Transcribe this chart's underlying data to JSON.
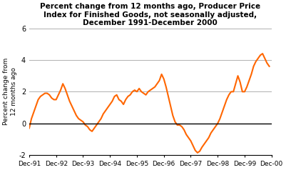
{
  "title": "Percent change from 12 months ago, Producer Price\nIndex for Finished Goods, not seasonally adjusted,\nDecember 1991-December 2000",
  "ylabel": "Percent change from\n12 months ago",
  "line_color": "#FF6600",
  "background_color": "#ffffff",
  "grid_color": "#b0b0b0",
  "ylim": [
    -2.0,
    6.0
  ],
  "yticks": [
    -2.0,
    0.0,
    2.0,
    4.0,
    6.0
  ],
  "xtick_labels": [
    "Dec-91",
    "Dec-92",
    "Dec-93",
    "Dec-94",
    "Dec-95",
    "Dec-96",
    "Dec-97",
    "Dec-98",
    "Dec-99",
    "Dec-00"
  ],
  "xtick_positions": [
    0,
    12,
    24,
    36,
    48,
    60,
    72,
    84,
    96,
    108
  ],
  "values": [
    -0.3,
    0.3,
    0.7,
    1.1,
    1.5,
    1.7,
    1.8,
    1.9,
    1.9,
    1.8,
    1.6,
    1.5,
    1.5,
    1.8,
    2.1,
    2.5,
    2.2,
    1.8,
    1.4,
    1.1,
    0.8,
    0.5,
    0.3,
    0.2,
    0.1,
    -0.1,
    -0.2,
    -0.4,
    -0.5,
    -0.3,
    -0.1,
    0.1,
    0.3,
    0.6,
    0.8,
    1.0,
    1.2,
    1.4,
    1.7,
    1.8,
    1.5,
    1.4,
    1.2,
    1.5,
    1.7,
    1.8,
    2.0,
    2.1,
    2.0,
    2.2,
    2.0,
    1.9,
    1.8,
    2.0,
    2.1,
    2.2,
    2.3,
    2.5,
    2.7,
    3.1,
    2.8,
    2.3,
    1.7,
    1.1,
    0.5,
    0.1,
    -0.1,
    -0.1,
    -0.2,
    -0.4,
    -0.7,
    -0.9,
    -1.1,
    -1.4,
    -1.7,
    -1.85,
    -1.75,
    -1.5,
    -1.3,
    -1.1,
    -0.9,
    -0.6,
    -0.4,
    -0.2,
    0.0,
    0.3,
    0.7,
    1.1,
    1.5,
    1.8,
    2.0,
    2.0,
    2.5,
    3.0,
    2.6,
    2.0,
    2.0,
    2.3,
    2.7,
    3.1,
    3.6,
    3.9,
    4.1,
    4.3,
    4.4,
    4.1,
    3.8,
    3.6
  ]
}
